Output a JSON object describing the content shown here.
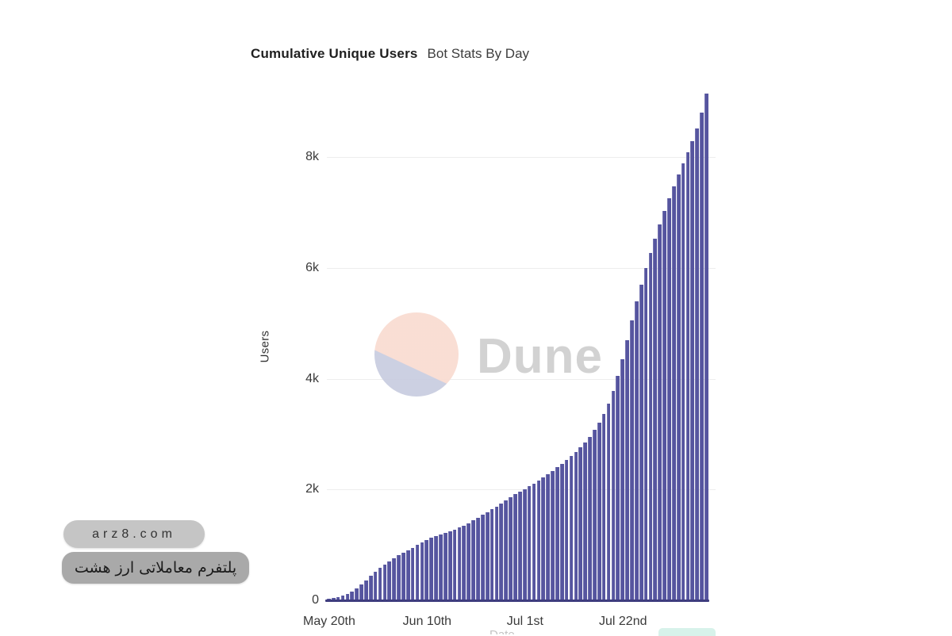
{
  "chart": {
    "title": "Cumulative Unique Users",
    "subtitle": "Bot Stats By Day"
  },
  "chart_data": {
    "type": "bar",
    "title": "Cumulative Unique Users",
    "subtitle": "Bot Stats By Day",
    "xlabel": "Date",
    "ylabel": "Users",
    "ylim": [
      0,
      9200
    ],
    "grid": true,
    "legend_position": "none",
    "bar_color": "#56559f",
    "axis_line_color": "#3e3c7e",
    "y_ticks": [
      {
        "label": "0",
        "value": 0
      },
      {
        "label": "2k",
        "value": 2000
      },
      {
        "label": "4k",
        "value": 4000
      },
      {
        "label": "6k",
        "value": 6000
      },
      {
        "label": "8k",
        "value": 8000
      }
    ],
    "x_ticks": [
      {
        "label": "May 20th",
        "day": 0
      },
      {
        "label": "Jun 10th",
        "day": 21
      },
      {
        "label": "Jul 1st",
        "day": 42
      },
      {
        "label": "Jul 22nd",
        "day": 63
      }
    ],
    "x_unit": "day",
    "values": [
      25,
      40,
      60,
      85,
      115,
      160,
      215,
      285,
      360,
      440,
      510,
      580,
      645,
      705,
      760,
      810,
      855,
      900,
      945,
      995,
      1045,
      1090,
      1125,
      1155,
      1185,
      1215,
      1245,
      1275,
      1310,
      1350,
      1395,
      1440,
      1490,
      1540,
      1590,
      1640,
      1690,
      1745,
      1800,
      1860,
      1915,
      1965,
      2010,
      2060,
      2110,
      2165,
      2220,
      2280,
      2340,
      2400,
      2465,
      2530,
      2600,
      2680,
      2760,
      2850,
      2950,
      3070,
      3200,
      3360,
      3550,
      3780,
      4050,
      4350,
      4700,
      5050,
      5400,
      5700,
      6000,
      6270,
      6530,
      6780,
      7020,
      7250,
      7470,
      7680,
      7890,
      8090,
      8290,
      8520,
      8800,
      9150
    ]
  },
  "watermark": {
    "brand": "Dune",
    "logo_top_color": "#f9dcd2",
    "logo_bottom_color": "#c9cde0"
  },
  "badges": {
    "site": "arz8.com",
    "tagline_fa": "پلتفرم معاملاتی ارز هشت"
  },
  "legend_stub": "Date"
}
